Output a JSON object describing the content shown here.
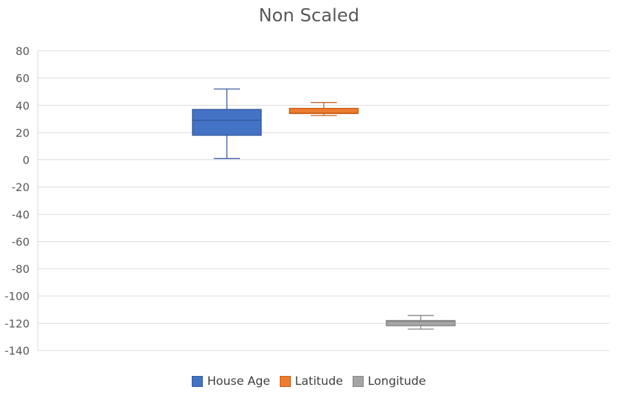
{
  "chart_data": {
    "type": "box",
    "title": "Non Scaled",
    "xlabel": "",
    "ylabel": "",
    "ylim": [
      -140,
      80
    ],
    "y_ticks": [
      80,
      60,
      40,
      20,
      0,
      -20,
      -40,
      -60,
      -80,
      -100,
      -120,
      -140
    ],
    "y_tick_labels": [
      "80",
      "60",
      "40",
      "20",
      "0",
      "-20",
      "-40",
      "-60",
      "-80",
      "-100",
      "-120",
      "-140"
    ],
    "grid": true,
    "legend_position": "bottom",
    "series": [
      {
        "name": "House Age",
        "color": "#4472C4",
        "border": "#2F5597",
        "min": 1,
        "q1": 18,
        "median": 29,
        "q3": 37,
        "max": 52
      },
      {
        "name": "Latitude",
        "color": "#ED7D31",
        "border": "#C55A11",
        "min": 32.5,
        "q1": 34,
        "median": 34.3,
        "q3": 37.8,
        "max": 42
      },
      {
        "name": "Longitude",
        "color": "#A5A5A5",
        "border": "#7F7F7F",
        "min": -124.3,
        "q1": -121.8,
        "median": -118.5,
        "q3": -118,
        "max": -114.3
      }
    ]
  }
}
